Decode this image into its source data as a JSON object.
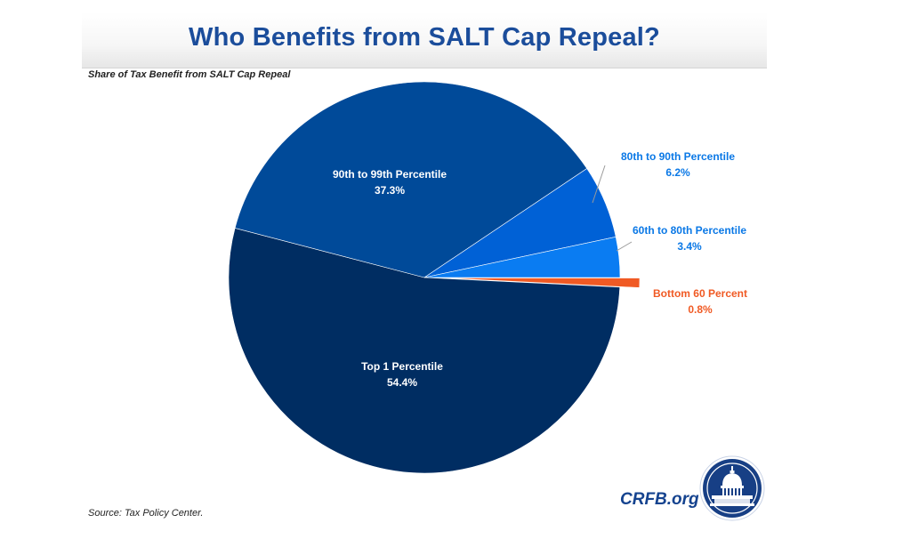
{
  "header": {
    "title": "Who Benefits from SALT Cap Repeal?",
    "subtitle": "Share of Tax Benefit from SALT Cap Repeal"
  },
  "footer": {
    "source": "Source: Tax Policy Center.",
    "brand": "CRFB.org"
  },
  "chart_data": {
    "type": "pie",
    "title": "Who Benefits from SALT Cap Repeal?",
    "subtitle": "Share of Tax Benefit from SALT Cap Repeal",
    "slices": [
      {
        "label": "Top 1 Percentile",
        "value": 54.4,
        "value_label": "54.4%",
        "color": "#002d62",
        "label_color": "#ffffff"
      },
      {
        "label": "90th to 99th Percentile",
        "value": 37.3,
        "value_label": "37.3%",
        "color": "#004a99",
        "label_color": "#ffffff"
      },
      {
        "label": "80th to 90th Percentile",
        "value": 6.2,
        "value_label": "6.2%",
        "color": "#0061d6",
        "label_color": "#0a78e6"
      },
      {
        "label": "60th to 80th Percentile",
        "value": 3.4,
        "value_label": "3.4%",
        "color": "#0a7cf2",
        "label_color": "#0a78e6"
      },
      {
        "label": "Bottom 60 Percent",
        "value": 0.8,
        "value_label": "0.8%",
        "color": "#f05a24",
        "label_color": "#f05a24"
      }
    ],
    "legend": "none"
  },
  "colors": {
    "title": "#1b4d9b",
    "brand": "#15438f"
  },
  "logo": {
    "icon": "capitol-dome-icon"
  }
}
